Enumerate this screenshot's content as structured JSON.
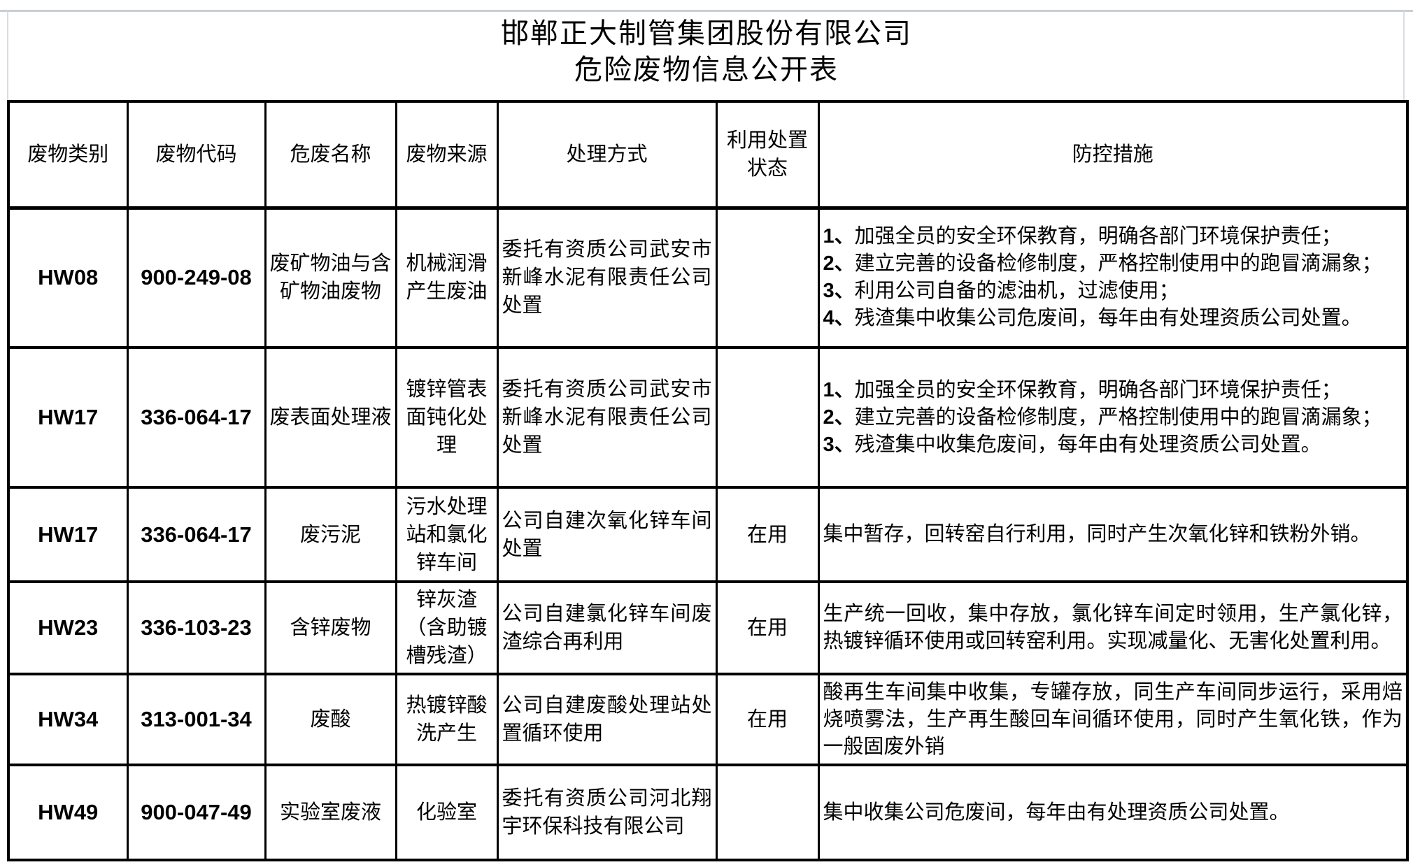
{
  "header": {
    "company": "邯郸正大制管集团股份有限公司",
    "table_title": "危险废物信息公开表"
  },
  "colors": {
    "border": "#000000",
    "text": "#000000",
    "top_rule": "#c9cdd5",
    "background": "#ffffff"
  },
  "table": {
    "columns": [
      {
        "key": "category",
        "label": "废物类别"
      },
      {
        "key": "code",
        "label": "废物代码"
      },
      {
        "key": "name",
        "label": "危废名称"
      },
      {
        "key": "source",
        "label": "废物来源"
      },
      {
        "key": "treatment",
        "label": "处理方式"
      },
      {
        "key": "status",
        "label": "利用处置状态"
      },
      {
        "key": "measures",
        "label": "防控措施"
      }
    ],
    "rows": [
      {
        "category": "HW08",
        "code": "900-249-08",
        "name": "废矿物油与含矿物油废物",
        "source": "机械润滑产生废油",
        "treatment": "委托有资质公司武安市新峰水泥有限责任公司处置",
        "status": "",
        "measures": [
          "1、加强全员的安全环保教育，明确各部门环境保护责任；",
          "2、建立完善的设备检修制度，严格控制使用中的跑冒滴漏象；",
          "3、利用公司自备的滤油机，过滤使用；",
          "4、残渣集中收集公司危废间，每年由有处理资质公司处置。"
        ]
      },
      {
        "category": "HW17",
        "code": "336-064-17",
        "name": "废表面处理液",
        "source": "镀锌管表面钝化处理",
        "treatment": "委托有资质公司武安市新峰水泥有限责任公司处置",
        "status": "",
        "measures": [
          "1、加强全员的安全环保教育，明确各部门环境保护责任；",
          "2、建立完善的设备检修制度，严格控制使用中的跑冒滴漏象；",
          "3、残渣集中收集危废间，每年由有处理资质公司处置。"
        ]
      },
      {
        "category": "HW17",
        "code": "336-064-17",
        "name": "废污泥",
        "source": "污水处理站和氯化锌车间",
        "treatment": "公司自建次氧化锌车间处置",
        "status": "在用",
        "measures": [
          "集中暂存，回转窑自行利用，同时产生次氧化锌和铁粉外销。"
        ]
      },
      {
        "category": "HW23",
        "code": "336-103-23",
        "name": "含锌废物",
        "source": "锌灰渣（含助镀槽残渣）",
        "treatment": "公司自建氯化锌车间废渣综合再利用",
        "status": "在用",
        "measures": [
          "生产统一回收，集中存放，氯化锌车间定时领用，生产氯化锌，热镀锌循环使用或回转窑利用。实现减量化、无害化处置利用。"
        ]
      },
      {
        "category": "HW34",
        "code": "313-001-34",
        "name": "废酸",
        "source": "热镀锌酸洗产生",
        "treatment": "公司自建废酸处理站处置循环使用",
        "status": "在用",
        "measures": [
          "酸再生车间集中收集，专罐存放，同生产车间同步运行，采用焙烧喷雾法，生产再生酸回车间循环使用，同时产生氧化铁，作为一般固废外销"
        ]
      },
      {
        "category": "HW49",
        "code": "900-047-49",
        "name": "实验室废液",
        "source": "化验室",
        "treatment": "委托有资质公司河北翔宇环保科技有限公司",
        "status": "",
        "measures": [
          "集中收集公司危废间，每年由有处理资质公司处置。"
        ]
      }
    ]
  }
}
